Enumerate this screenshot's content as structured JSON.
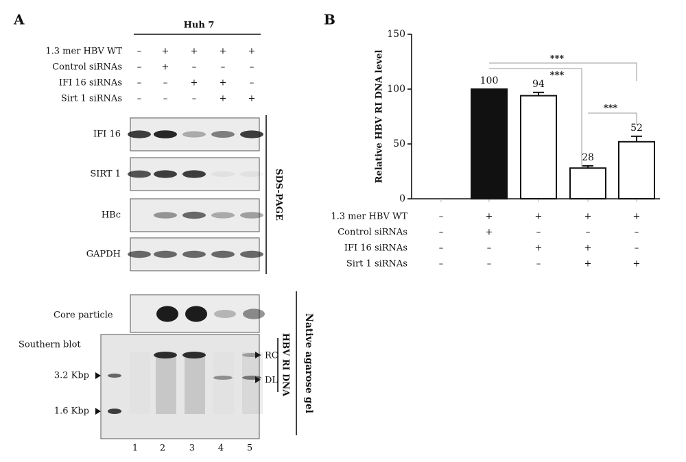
{
  "panel_a": {
    "letter": "A",
    "cell_line": "Huh 7",
    "conditions": [
      {
        "label": "1.3 mer HBV WT",
        "signs": [
          "–",
          "+",
          "+",
          "+",
          "+"
        ]
      },
      {
        "label": "Control siRNAs",
        "signs": [
          "–",
          "+",
          "–",
          "–",
          "–"
        ]
      },
      {
        "label": "IFI 16 siRNAs",
        "signs": [
          "–",
          "–",
          "+",
          "+",
          "–"
        ]
      },
      {
        "label": "Sirt 1 siRNAs",
        "signs": [
          "–",
          "–",
          "–",
          "+",
          "+"
        ]
      }
    ],
    "blots": [
      "IFI 16",
      "SIRT 1",
      "HBc",
      "GAPDH"
    ],
    "sds_label": "SDS-PAGE",
    "core_label": "Core particle",
    "southern_label": "Southern blot",
    "markers": [
      "3.2 Kbp",
      "1.6 Kbp"
    ],
    "rc": "RC",
    "dl": "DL",
    "ri_label": "HBV RI DNA",
    "native_label": "Native agarose gel",
    "lanes": [
      "1",
      "2",
      "3",
      "4",
      "5"
    ]
  },
  "panel_b": {
    "letter": "B",
    "chart_data": {
      "type": "bar",
      "ylabel": "Relative HBV RI DNA level",
      "values": [
        null,
        100,
        94,
        28,
        52
      ],
      "errors": [
        null,
        null,
        3,
        2,
        5
      ],
      "colors": [
        "#111111",
        "#111111",
        "#ffffff",
        "#ffffff",
        "#ffffff"
      ],
      "ylim": [
        0,
        150
      ],
      "yticks": [
        0,
        50,
        100,
        150
      ],
      "significance": [
        "***",
        "***",
        "***"
      ],
      "conditions": [
        {
          "label": "1.3 mer HBV WT",
          "signs": [
            "–",
            "+",
            "+",
            "+",
            "+"
          ]
        },
        {
          "label": "Control siRNAs",
          "signs": [
            "–",
            "+",
            "–",
            "–",
            "–"
          ]
        },
        {
          "label": "IFI 16 siRNAs",
          "signs": [
            "–",
            "–",
            "+",
            "+",
            "–"
          ]
        },
        {
          "label": "Sirt 1 siRNAs",
          "signs": [
            "–",
            "–",
            "–",
            "+",
            "+"
          ]
        }
      ]
    }
  }
}
